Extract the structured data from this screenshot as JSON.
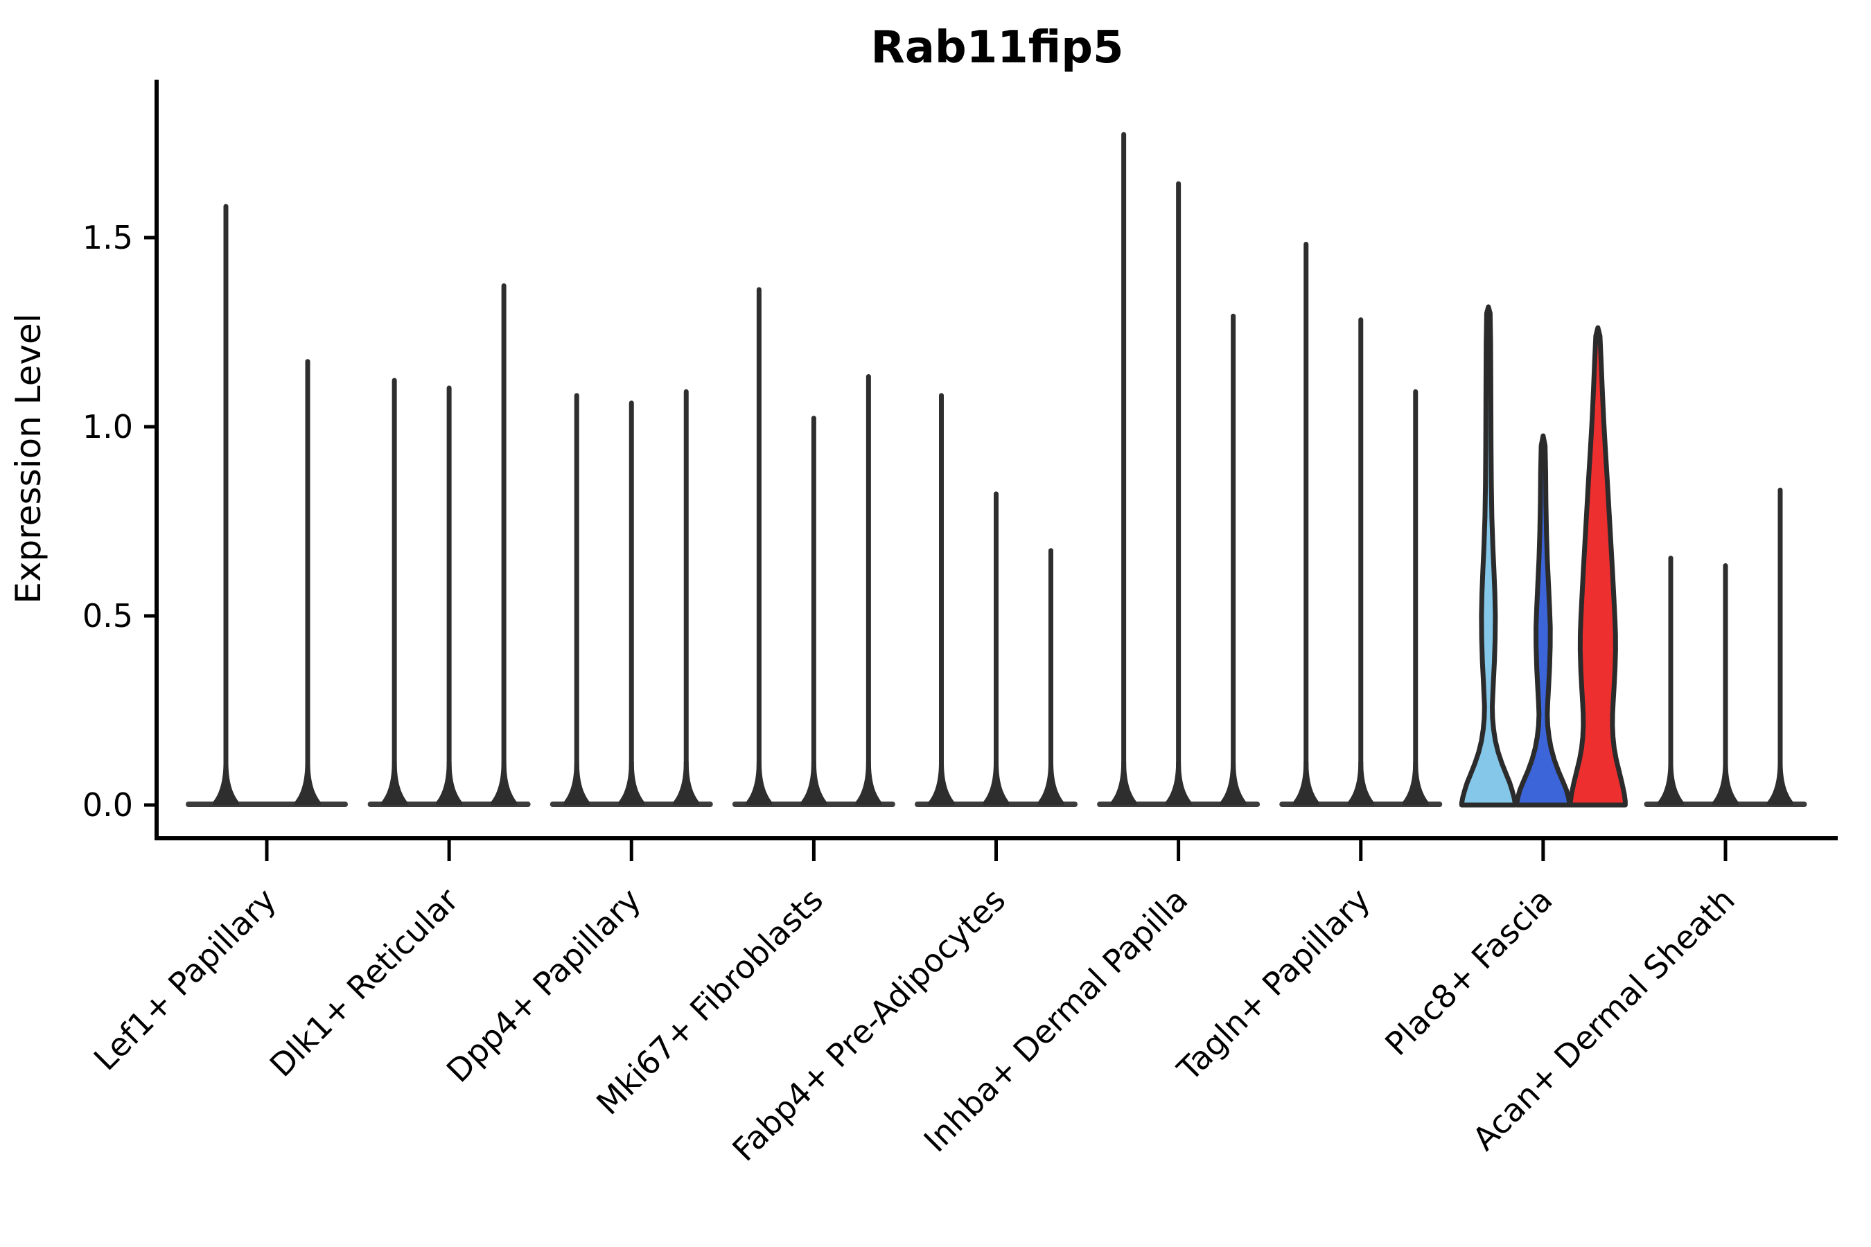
{
  "chart_data": {
    "type": "violin",
    "title": "Rab11fip5",
    "ylabel": "Expression Level",
    "yticks": [
      "0.0",
      "0.5",
      "1.0",
      "1.5"
    ],
    "ytick_values": [
      0.0,
      0.5,
      1.0,
      1.5
    ],
    "ylim": [
      -0.09,
      1.92
    ],
    "grid": false,
    "legend": "none",
    "categories": [
      "Lef1+ Papillary",
      "Dlk1+ Reticular",
      "Dpp4+ Papillary",
      "Mki67+ Fibroblasts",
      "Fabp4+ Pre-Adipocytes",
      "Inhba+ Dermal Papilla",
      "Tagln+ Papillary",
      "Plac8+ Fascia",
      "Acan+ Dermal Sheath"
    ],
    "colors": {
      "thin_violin": "#2E2E2E",
      "outline": "#2B2B2B",
      "base_strip": "#3C3C3C",
      "lightblue_fill": "#85C7E9",
      "blue_fill": "#3B65D8",
      "red_fill": "#EE2F2F"
    },
    "groups": [
      {
        "label": "Lef1+ Papillary",
        "violins": [
          {
            "peak": 1.59,
            "style": "thin"
          },
          {
            "peak": 1.18,
            "style": "thin"
          }
        ]
      },
      {
        "label": "Dlk1+ Reticular",
        "violins": [
          {
            "peak": 1.13,
            "style": "thin"
          },
          {
            "peak": 1.11,
            "style": "thin"
          },
          {
            "peak": 1.38,
            "style": "thin"
          }
        ]
      },
      {
        "label": "Dpp4+ Papillary",
        "violins": [
          {
            "peak": 1.09,
            "style": "thin"
          },
          {
            "peak": 1.07,
            "style": "thin"
          },
          {
            "peak": 1.1,
            "style": "thin"
          }
        ]
      },
      {
        "label": "Mki67+ Fibroblasts",
        "violins": [
          {
            "peak": 1.37,
            "style": "thin"
          },
          {
            "peak": 1.03,
            "style": "thin"
          },
          {
            "peak": 1.14,
            "style": "thin"
          }
        ]
      },
      {
        "label": "Fabp4+ Pre-Adipocytes",
        "violins": [
          {
            "peak": 1.09,
            "style": "thin"
          },
          {
            "peak": 0.83,
            "style": "thin"
          },
          {
            "peak": 0.68,
            "style": "thin"
          }
        ]
      },
      {
        "label": "Inhba+ Dermal Papilla",
        "violins": [
          {
            "peak": 1.78,
            "style": "thin"
          },
          {
            "peak": 1.65,
            "style": "thin"
          },
          {
            "peak": 1.3,
            "style": "thin"
          }
        ]
      },
      {
        "label": "Tagln+ Papillary",
        "violins": [
          {
            "peak": 1.49,
            "style": "thin"
          },
          {
            "peak": 1.29,
            "style": "thin"
          },
          {
            "peak": 1.1,
            "style": "thin"
          }
        ]
      },
      {
        "label": "Plac8+ Fascia",
        "violins": [
          {
            "peak": 1.32,
            "style": "shaped",
            "fill": "#85C7E9",
            "profile": [
              [
                1.317,
                0
              ],
              [
                1.3,
                2.5
              ],
              [
                1.22,
                3.2
              ],
              [
                1.1,
                3.5
              ],
              [
                0.95,
                3.8
              ],
              [
                0.85,
                4.2
              ],
              [
                0.76,
                5
              ],
              [
                0.68,
                6.5
              ],
              [
                0.62,
                8
              ],
              [
                0.56,
                9.3
              ],
              [
                0.5,
                10
              ],
              [
                0.44,
                9.7
              ],
              [
                0.38,
                8.7
              ],
              [
                0.33,
                7.3
              ],
              [
                0.29,
                6.3
              ],
              [
                0.26,
                5.6
              ],
              [
                0.23,
                6
              ],
              [
                0.2,
                7.5
              ],
              [
                0.17,
                10
              ],
              [
                0.14,
                14
              ],
              [
                0.11,
                19.5
              ],
              [
                0.08,
                26
              ],
              [
                0.06,
                30.5
              ],
              [
                0.04,
                34
              ],
              [
                0.02,
                37
              ],
              [
                0.005,
                38.5
              ],
              [
                0,
                38.5
              ]
            ]
          },
          {
            "peak": 0.98,
            "style": "shaped",
            "fill": "#3B65D8",
            "profile": [
              [
                0.976,
                0
              ],
              [
                0.95,
                2.8
              ],
              [
                0.88,
                3.6
              ],
              [
                0.8,
                4
              ],
              [
                0.72,
                4.8
              ],
              [
                0.65,
                6
              ],
              [
                0.58,
                7.8
              ],
              [
                0.52,
                9.3
              ],
              [
                0.47,
                10.3
              ],
              [
                0.42,
                10.2
              ],
              [
                0.36,
                9.2
              ],
              [
                0.31,
                7.8
              ],
              [
                0.27,
                6.6
              ],
              [
                0.24,
                6
              ],
              [
                0.21,
                6.6
              ],
              [
                0.18,
                8.5
              ],
              [
                0.15,
                11.5
              ],
              [
                0.12,
                16
              ],
              [
                0.09,
                22
              ],
              [
                0.06,
                29
              ],
              [
                0.04,
                33.5
              ],
              [
                0.02,
                36.5
              ],
              [
                0.005,
                38
              ],
              [
                0,
                38
              ]
            ]
          },
          {
            "peak": 1.26,
            "style": "shaped",
            "fill": "#EE2F2F",
            "profile": [
              [
                1.262,
                0
              ],
              [
                1.24,
                3
              ],
              [
                1.18,
                4.5
              ],
              [
                1.1,
                6.3
              ],
              [
                1.02,
                8.3
              ],
              [
                0.94,
                10.8
              ],
              [
                0.86,
                13.5
              ],
              [
                0.78,
                16
              ],
              [
                0.7,
                18.5
              ],
              [
                0.62,
                21
              ],
              [
                0.55,
                23
              ],
              [
                0.49,
                24.6
              ],
              [
                0.45,
                25.4
              ],
              [
                0.41,
                25.5
              ],
              [
                0.36,
                24.7
              ],
              [
                0.31,
                23.3
              ],
              [
                0.27,
                22
              ],
              [
                0.24,
                21.2
              ],
              [
                0.21,
                21
              ],
              [
                0.18,
                21.8
              ],
              [
                0.15,
                23.5
              ],
              [
                0.12,
                26.5
              ],
              [
                0.09,
                30.5
              ],
              [
                0.06,
                34.5
              ],
              [
                0.03,
                38
              ],
              [
                0.01,
                39.5
              ],
              [
                0,
                39.5
              ]
            ]
          }
        ]
      },
      {
        "label": "Acan+ Dermal Sheath",
        "violins": [
          {
            "peak": 0.66,
            "style": "thin"
          },
          {
            "peak": 0.64,
            "style": "thin"
          },
          {
            "peak": 0.84,
            "style": "thin"
          }
        ]
      }
    ]
  }
}
